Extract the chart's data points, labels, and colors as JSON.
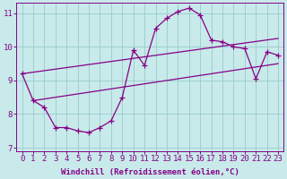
{
  "xlabel": "Windchill (Refroidissement éolien,°C)",
  "x": [
    0,
    1,
    2,
    3,
    4,
    5,
    6,
    7,
    8,
    9,
    10,
    11,
    12,
    13,
    14,
    15,
    16,
    17,
    18,
    19,
    20,
    21,
    22,
    23
  ],
  "y_main": [
    9.2,
    8.4,
    8.2,
    7.6,
    7.6,
    7.5,
    7.45,
    7.6,
    7.8,
    8.5,
    9.9,
    9.45,
    10.55,
    10.85,
    11.05,
    11.15,
    10.95,
    10.2,
    10.15,
    10.0,
    9.95,
    9.05,
    9.85,
    9.75
  ],
  "y_upper_start": 9.2,
  "y_upper_end": 10.25,
  "x_upper_start": 0,
  "x_upper_end": 23,
  "y_lower_start": 8.4,
  "y_lower_end": 9.5,
  "x_lower_start": 1,
  "x_lower_end": 23,
  "line_color": "#880088",
  "bg_color": "#c8eaea",
  "plot_bg_color": "#c8eaea",
  "grid_color": "#99cccc",
  "ylim": [
    6.9,
    11.3
  ],
  "yticks": [
    7,
    8,
    9,
    10,
    11
  ],
  "xticks": [
    0,
    1,
    2,
    3,
    4,
    5,
    6,
    7,
    8,
    9,
    10,
    11,
    12,
    13,
    14,
    15,
    16,
    17,
    18,
    19,
    20,
    21,
    22,
    23
  ],
  "marker": "+",
  "markersize": 4,
  "linewidth": 0.9,
  "xlabel_fontsize": 6.5,
  "tick_fontsize": 6.5,
  "label_color": "#880088"
}
